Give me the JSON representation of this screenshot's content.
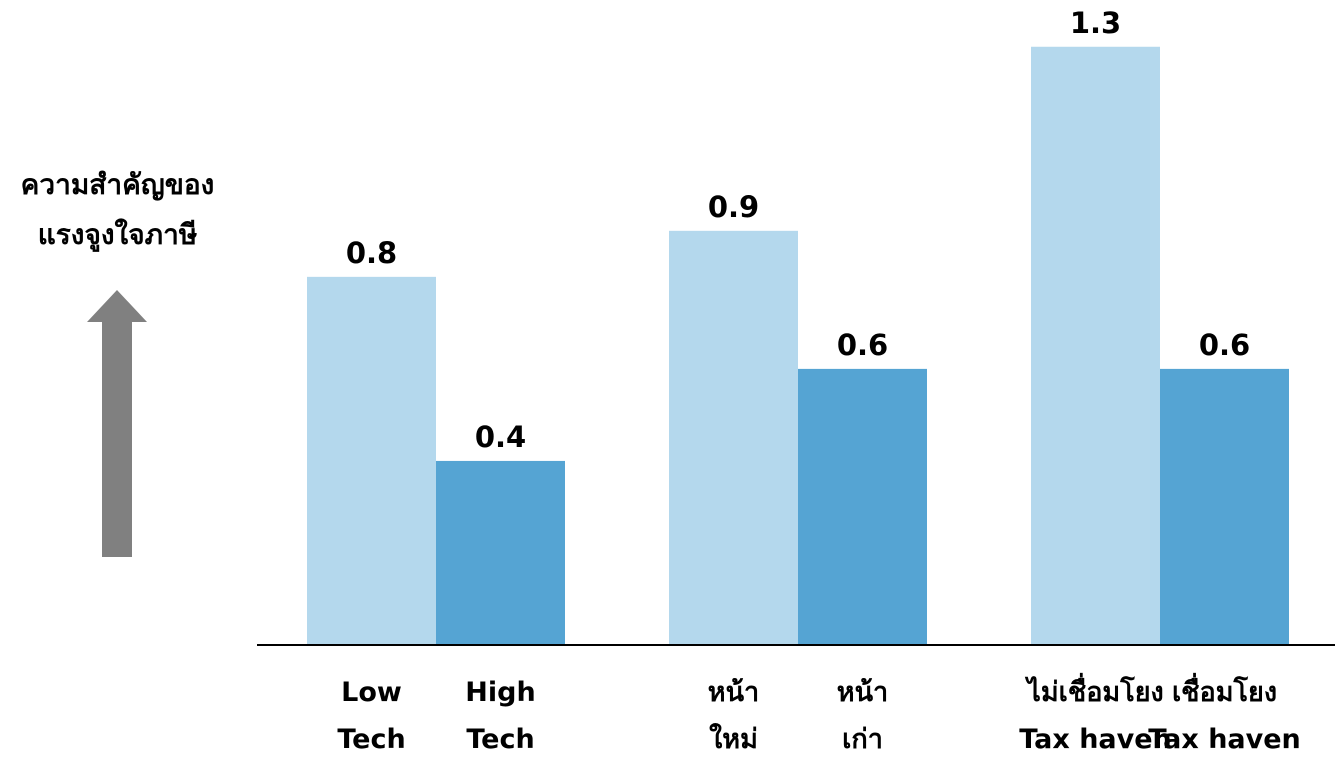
{
  "y_indicator": {
    "line1": "ความสำคัญของ",
    "line2": "แรงจูงใจภาษี",
    "arrow_color": "#808080"
  },
  "colors": {
    "light_bar": "#b4d8ed",
    "dark_bar": "#55a4d3",
    "axis": "#000000",
    "text": "#000000"
  },
  "chart_data": {
    "type": "bar",
    "title": "",
    "ylabel": "ความสำคัญของ แรงจูงใจภาษี",
    "xlabel": "",
    "ylim": [
      0,
      1.35
    ],
    "grid": false,
    "groups": [
      {
        "bars": [
          {
            "label": [
              "Low",
              "Tech"
            ],
            "value": 0.8,
            "value_label": "0.8",
            "shade": "light"
          },
          {
            "label": [
              "High",
              "Tech"
            ],
            "value": 0.4,
            "value_label": "0.4",
            "shade": "dark"
          }
        ]
      },
      {
        "bars": [
          {
            "label": [
              "หน้า",
              "ใหม่"
            ],
            "value": 0.9,
            "value_label": "0.9",
            "shade": "light"
          },
          {
            "label": [
              "หน้า",
              "เก่า"
            ],
            "value": 0.6,
            "value_label": "0.6",
            "shade": "dark"
          }
        ]
      },
      {
        "bars": [
          {
            "label": [
              "ไม่เชื่อมโยง",
              "Tax haven"
            ],
            "value": 1.3,
            "value_label": "1.3",
            "shade": "light"
          },
          {
            "label": [
              "เชื่อมโยง",
              "Tax haven"
            ],
            "value": 0.6,
            "value_label": "0.6",
            "shade": "dark"
          }
        ]
      }
    ]
  }
}
